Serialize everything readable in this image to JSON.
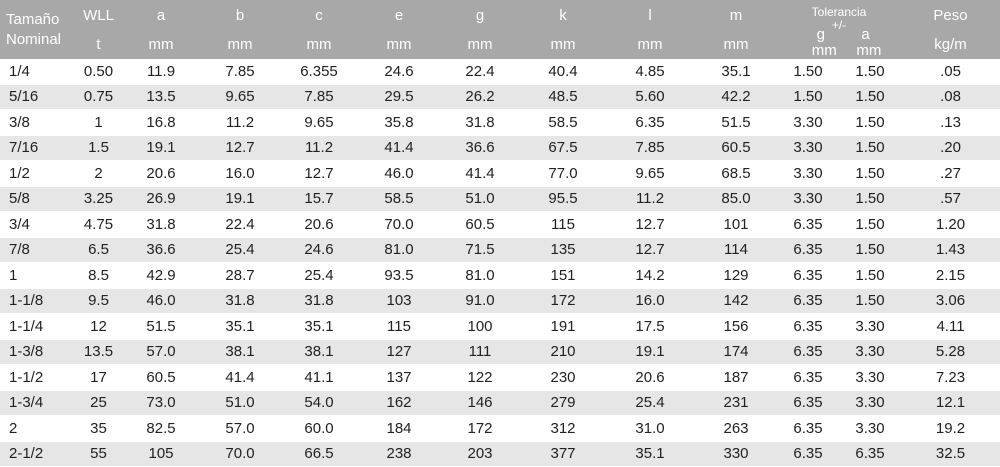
{
  "headers": {
    "nominal_line1": "Tamaño",
    "nominal_line2": "Nominal",
    "wll": "WLL",
    "wll_unit": "t",
    "a": "a",
    "b": "b",
    "c": "c",
    "e": "e",
    "g": "g",
    "k": "k",
    "l": "l",
    "m": "m",
    "mm": "mm",
    "tolerance": "Tolerancia",
    "tolerance_sign": "+/-",
    "tol_g": "g",
    "tol_a": "a",
    "weight": "Peso",
    "weight_unit": "kg/m"
  },
  "rows": [
    [
      "1/4",
      "0.50",
      "11.9",
      "7.85",
      "6.355",
      "24.6",
      "22.4",
      "40.4",
      "4.85",
      "35.1",
      "1.50",
      "1.50",
      ".05"
    ],
    [
      "5/16",
      "0.75",
      "13.5",
      "9.65",
      "7.85",
      "29.5",
      "26.2",
      "48.5",
      "5.60",
      "42.2",
      "1.50",
      "1.50",
      ".08"
    ],
    [
      "3/8",
      "1",
      "16.8",
      "11.2",
      "9.65",
      "35.8",
      "31.8",
      "58.5",
      "6.35",
      "51.5",
      "3.30",
      "1.50",
      ".13"
    ],
    [
      "7/16",
      "1.5",
      "19.1",
      "12.7",
      "11.2",
      "41.4",
      "36.6",
      "67.5",
      "7.85",
      "60.5",
      "3.30",
      "1.50",
      ".20"
    ],
    [
      "1/2",
      "2",
      "20.6",
      "16.0",
      "12.7",
      "46.0",
      "41.4",
      "77.0",
      "9.65",
      "68.5",
      "3.30",
      "1.50",
      ".27"
    ],
    [
      "5/8",
      "3.25",
      "26.9",
      "19.1",
      "15.7",
      "58.5",
      "51.0",
      "95.5",
      "11.2",
      "85.0",
      "3.30",
      "1.50",
      ".57"
    ],
    [
      "3/4",
      "4.75",
      "31.8",
      "22.4",
      "20.6",
      "70.0",
      "60.5",
      "115",
      "12.7",
      "101",
      "6.35",
      "1.50",
      "1.20"
    ],
    [
      "7/8",
      "6.5",
      "36.6",
      "25.4",
      "24.6",
      "81.0",
      "71.5",
      "135",
      "12.7",
      "114",
      "6.35",
      "1.50",
      "1.43"
    ],
    [
      "1",
      "8.5",
      "42.9",
      "28.7",
      "25.4",
      "93.5",
      "81.0",
      "151",
      "14.2",
      "129",
      "6.35",
      "1.50",
      "2.15"
    ],
    [
      "1-1/8",
      "9.5",
      "46.0",
      "31.8",
      "31.8",
      "103",
      "91.0",
      "172",
      "16.0",
      "142",
      "6.35",
      "1.50",
      "3.06"
    ],
    [
      "1-1/4",
      "12",
      "51.5",
      "35.1",
      "35.1",
      "115",
      "100",
      "191",
      "17.5",
      "156",
      "6.35",
      "3.30",
      "4.11"
    ],
    [
      "1-3/8",
      "13.5",
      "57.0",
      "38.1",
      "38.1",
      "127",
      "111",
      "210",
      "19.1",
      "174",
      "6.35",
      "3.30",
      "5.28"
    ],
    [
      "1-1/2",
      "17",
      "60.5",
      "41.4",
      "41.1",
      "137",
      "122",
      "230",
      "20.6",
      "187",
      "6.35",
      "3.30",
      "7.23"
    ],
    [
      "1-3/4",
      "25",
      "73.0",
      "51.0",
      "54.0",
      "162",
      "146",
      "279",
      "25.4",
      "231",
      "6.35",
      "3.30",
      "12.1"
    ],
    [
      "2",
      "35",
      "82.5",
      "57.0",
      "60.0",
      "184",
      "172",
      "312",
      "31.0",
      "263",
      "6.35",
      "3.30",
      "19.2"
    ],
    [
      "2-1/2",
      "55",
      "105",
      "70.0",
      "66.5",
      "238",
      "203",
      "377",
      "35.1",
      "330",
      "6.35",
      "6.35",
      "32.5"
    ]
  ]
}
